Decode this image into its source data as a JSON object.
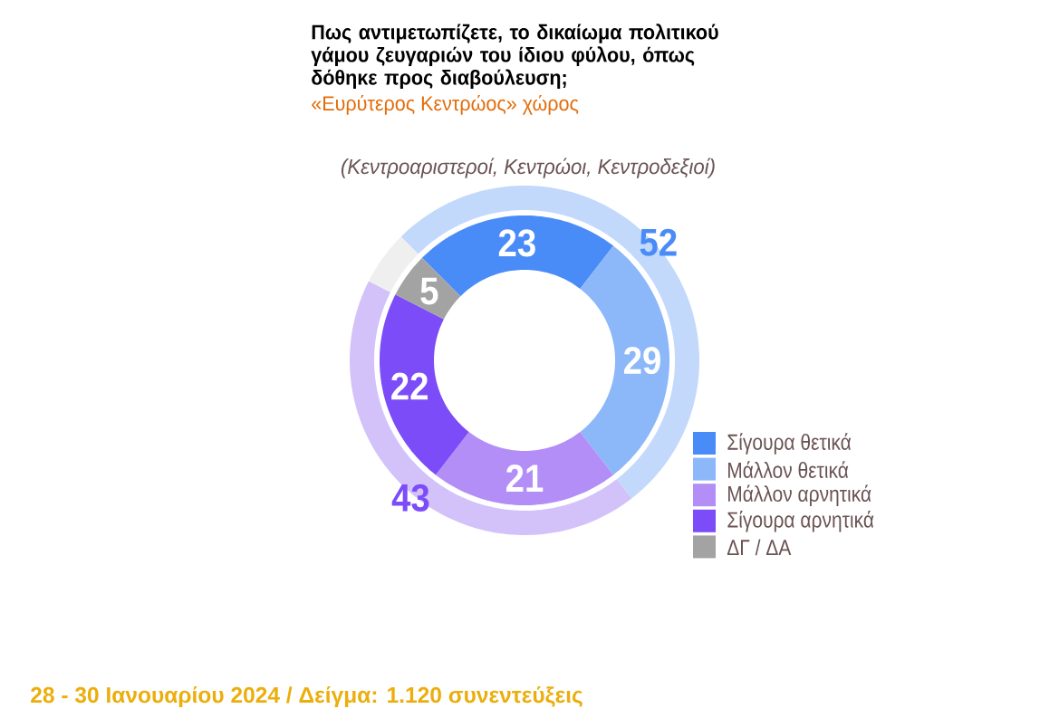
{
  "chart_data": [
    {
      "type": "donut",
      "title": "Πως αντιμετωπίζετε, το δικαίωμα πολιτικού γάμου ζευγαριών του ίδιου φύλου, όπως δόθηκε προς διαβούλευση;",
      "subtitle": "«Ευρύτερος Κεντρώος» χώρος",
      "annotations": [
        "(Κεντροαριστεροί, Κεντρώοι, Κεντροδεξιοί)",
        "28 - 30 Ιανουαρίου 2024 / Δείγμα: 1.120 συνεντεύξεις"
      ],
      "categories": [
        "Σίγουρα θετικά",
        "Μάλλον θετικά",
        "Μάλλον αρνητικά",
        "Σίγουρα αρνητικά",
        "ΔΓ / ΔΑ"
      ],
      "values": [
        23,
        29,
        21,
        22,
        5
      ],
      "colors": [
        "#4a8cf7",
        "#8cb8f9",
        "#b38ef7",
        "#7b4cf7",
        "#a3a3a3"
      ],
      "data_labels": true,
      "legend": "bottom right"
    },
    {
      "type": "donut",
      "categories": [
        null,
        null,
        null
      ],
      "values": [
        52,
        43,
        5
      ],
      "colors": [
        "#c3d9fc",
        "#d3c2fa",
        "#efefef"
      ],
      "value_labels": [
        "52",
        "43",
        null
      ]
    }
  ]
}
